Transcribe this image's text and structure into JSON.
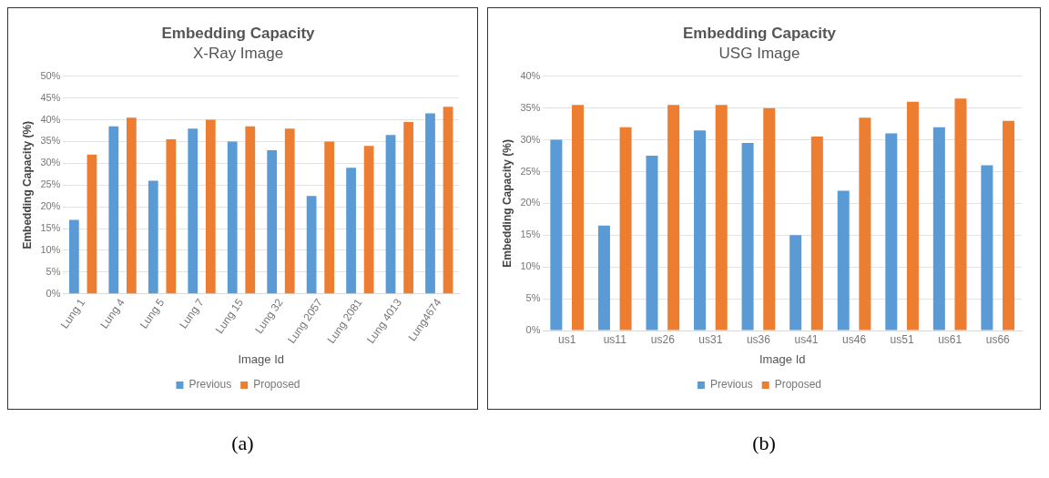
{
  "chart_data": [
    {
      "type": "bar",
      "title": "Embedding Capacity",
      "subtitle": "X-Ray Image",
      "xlabel": "Image Id",
      "ylabel": "Embedding Capacity (%)",
      "categories": [
        "Lung 1",
        "Lung 4",
        "Lung 5",
        "Lung 7",
        "Lung 15",
        "Lung 32",
        "Lung 2057",
        "Lung 2081",
        "Lung 4013",
        "Lung4674"
      ],
      "series": [
        {
          "name": "Previous",
          "color": "#5b9bd5",
          "values": [
            17,
            38.5,
            26,
            38,
            35,
            33,
            22.5,
            29,
            36.5,
            41.5
          ]
        },
        {
          "name": "Proposed",
          "color": "#ed7d31",
          "values": [
            32,
            40.5,
            35.5,
            40,
            38.5,
            38,
            35,
            34,
            39.5,
            43
          ]
        }
      ],
      "ylim": [
        0,
        50
      ],
      "yticks": [
        {
          "value": 0,
          "label": "0%"
        },
        {
          "value": 5,
          "label": "5%"
        },
        {
          "value": 10,
          "label": "10%"
        },
        {
          "value": 15,
          "label": "15%"
        },
        {
          "value": 20,
          "label": "20%"
        },
        {
          "value": 25,
          "label": "25%"
        },
        {
          "value": 30,
          "label": "30%"
        },
        {
          "value": 35,
          "label": "35%"
        },
        {
          "value": 40,
          "label": "40%"
        },
        {
          "value": 45,
          "label": "45%"
        },
        {
          "value": 50,
          "label": "50%"
        }
      ],
      "grid": "y",
      "legend": "bottom",
      "annotations": [
        "(a)"
      ]
    },
    {
      "type": "bar",
      "title": "Embedding Capacity",
      "subtitle": "USG Image",
      "xlabel": "Image Id",
      "ylabel": "Embedding Capacity (%)",
      "categories": [
        "us1",
        "us11",
        "us26",
        "us31",
        "us36",
        "us41",
        "us46",
        "us51",
        "us61",
        "us66"
      ],
      "series": [
        {
          "name": "Previous",
          "color": "#5b9bd5",
          "values": [
            30,
            16.5,
            27.5,
            31.5,
            29.5,
            15,
            22,
            31,
            32,
            26
          ]
        },
        {
          "name": "Proposed",
          "color": "#ed7d31",
          "values": [
            35.5,
            32,
            35.5,
            35.5,
            35,
            30.5,
            33.5,
            36,
            36.5,
            33
          ]
        }
      ],
      "ylim": [
        0,
        40
      ],
      "yticks": [
        {
          "value": 0,
          "label": "0%"
        },
        {
          "value": 5,
          "label": "5%"
        },
        {
          "value": 10,
          "label": "10%"
        },
        {
          "value": 15,
          "label": "15%"
        },
        {
          "value": 20,
          "label": "20%"
        },
        {
          "value": 25,
          "label": "25%"
        },
        {
          "value": 30,
          "label": "30%"
        },
        {
          "value": 35,
          "label": "35%"
        },
        {
          "value": 40,
          "label": "40%"
        }
      ],
      "grid": "y",
      "legend": "bottom",
      "annotations": [
        "(b)"
      ]
    }
  ]
}
